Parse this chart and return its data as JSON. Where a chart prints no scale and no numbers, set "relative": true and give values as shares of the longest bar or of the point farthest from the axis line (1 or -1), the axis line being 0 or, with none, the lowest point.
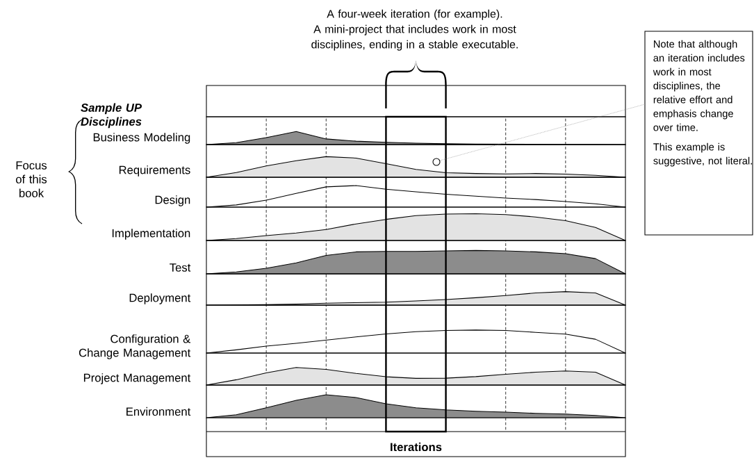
{
  "chart_data": [
    {
      "type": "area",
      "relative": true,
      "ylabel": "Business Modeling",
      "color": "#8c8c8c",
      "categories": [
        null,
        null,
        null,
        null,
        null,
        null,
        null,
        null,
        null,
        null,
        null,
        null,
        null,
        null,
        null
      ],
      "values": [
        0,
        0.15,
        0.53,
        1,
        0.43,
        0.26,
        0.17,
        0.11,
        0.06,
        0.04,
        0.03,
        0.02,
        0.01,
        0.01,
        0
      ],
      "grid": "x",
      "annotations": [
        "A four-week iteration (for example).",
        "A mini-project that includes work in most disciplines, ending in a stable executable.",
        "Note that although an iteration includes work in most disciplines, the relative effort and emphasis change over time.",
        "This example is suggestive, not literal.",
        "Sample UP Disciplines",
        "Focus of this book"
      ]
    },
    {
      "type": "area",
      "relative": true,
      "ylabel": "Requirements",
      "color": "#e3e3e3",
      "categories": [
        null,
        null,
        null,
        null,
        null,
        null,
        null,
        null,
        null,
        null,
        null,
        null,
        null,
        null,
        null
      ],
      "values": [
        0,
        0.23,
        0.55,
        0.8,
        1,
        0.93,
        0.66,
        0.38,
        0.22,
        0.18,
        0.16,
        0.18,
        0.15,
        0.09,
        0
      ],
      "grid": "x"
    },
    {
      "type": "line",
      "relative": true,
      "ylabel": "Design",
      "color": "#000000",
      "categories": [
        null,
        null,
        null,
        null,
        null,
        null,
        null,
        null,
        null,
        null,
        null,
        null,
        null,
        null,
        null
      ],
      "values": [
        0,
        0.1,
        0.32,
        0.64,
        0.94,
        1,
        0.83,
        0.71,
        0.6,
        0.51,
        0.42,
        0.35,
        0.26,
        0.15,
        0
      ],
      "grid": "x"
    },
    {
      "type": "area",
      "relative": true,
      "ylabel": "Implementation",
      "color": "#e3e3e3",
      "categories": [
        null,
        null,
        null,
        null,
        null,
        null,
        null,
        null,
        null,
        null,
        null,
        null,
        null,
        null,
        null
      ],
      "values": [
        0,
        0.07,
        0.18,
        0.28,
        0.41,
        0.62,
        0.79,
        0.93,
        0.99,
        1,
        0.97,
        0.88,
        0.74,
        0.49,
        0
      ],
      "grid": "x"
    },
    {
      "type": "area",
      "relative": true,
      "ylabel": "Test",
      "color": "#8c8c8c",
      "categories": [
        null,
        null,
        null,
        null,
        null,
        null,
        null,
        null,
        null,
        null,
        null,
        null,
        null,
        null,
        null
      ],
      "values": [
        0,
        0.08,
        0.24,
        0.47,
        0.79,
        0.94,
        0.96,
        0.96,
        0.98,
        1,
        0.98,
        0.94,
        0.86,
        0.65,
        0
      ],
      "grid": "x"
    },
    {
      "type": "area",
      "relative": true,
      "ylabel": "Deployment",
      "color": "#e3e3e3",
      "categories": [
        null,
        null,
        null,
        null,
        null,
        null,
        null,
        null,
        null,
        null,
        null,
        null,
        null,
        null,
        null
      ],
      "values": [
        0,
        0.02,
        0.04,
        0.08,
        0.14,
        0.18,
        0.22,
        0.31,
        0.41,
        0.55,
        0.71,
        0.9,
        1,
        0.9,
        0
      ],
      "grid": "x"
    },
    {
      "type": "line",
      "relative": true,
      "ylabel": "Configuration & Change Management",
      "color": "#000000",
      "categories": [
        null,
        null,
        null,
        null,
        null,
        null,
        null,
        null,
        null,
        null,
        null,
        null,
        null,
        null,
        null
      ],
      "values": [
        0,
        0.14,
        0.3,
        0.42,
        0.56,
        0.7,
        0.83,
        0.93,
        0.98,
        1,
        0.98,
        0.9,
        0.82,
        0.6,
        0
      ],
      "grid": "x"
    },
    {
      "type": "area",
      "relative": true,
      "ylabel": "Project Management",
      "color": "#e3e3e3",
      "categories": [
        null,
        null,
        null,
        null,
        null,
        null,
        null,
        null,
        null,
        null,
        null,
        null,
        null,
        null,
        null
      ],
      "values": [
        0,
        0.3,
        0.69,
        1,
        0.89,
        0.66,
        0.47,
        0.38,
        0.39,
        0.48,
        0.61,
        0.73,
        0.8,
        0.73,
        0
      ],
      "grid": "x"
    },
    {
      "type": "area",
      "relative": true,
      "ylabel": "Environment",
      "xlabel": "Iterations",
      "color": "#8c8c8c",
      "categories": [
        null,
        null,
        null,
        null,
        null,
        null,
        null,
        null,
        null,
        null,
        null,
        null,
        null,
        null,
        null
      ],
      "values": [
        0,
        0.13,
        0.43,
        0.76,
        1,
        0.88,
        0.61,
        0.43,
        0.34,
        0.28,
        0.24,
        0.19,
        0.16,
        0.1,
        0
      ],
      "grid": "x"
    }
  ]
}
